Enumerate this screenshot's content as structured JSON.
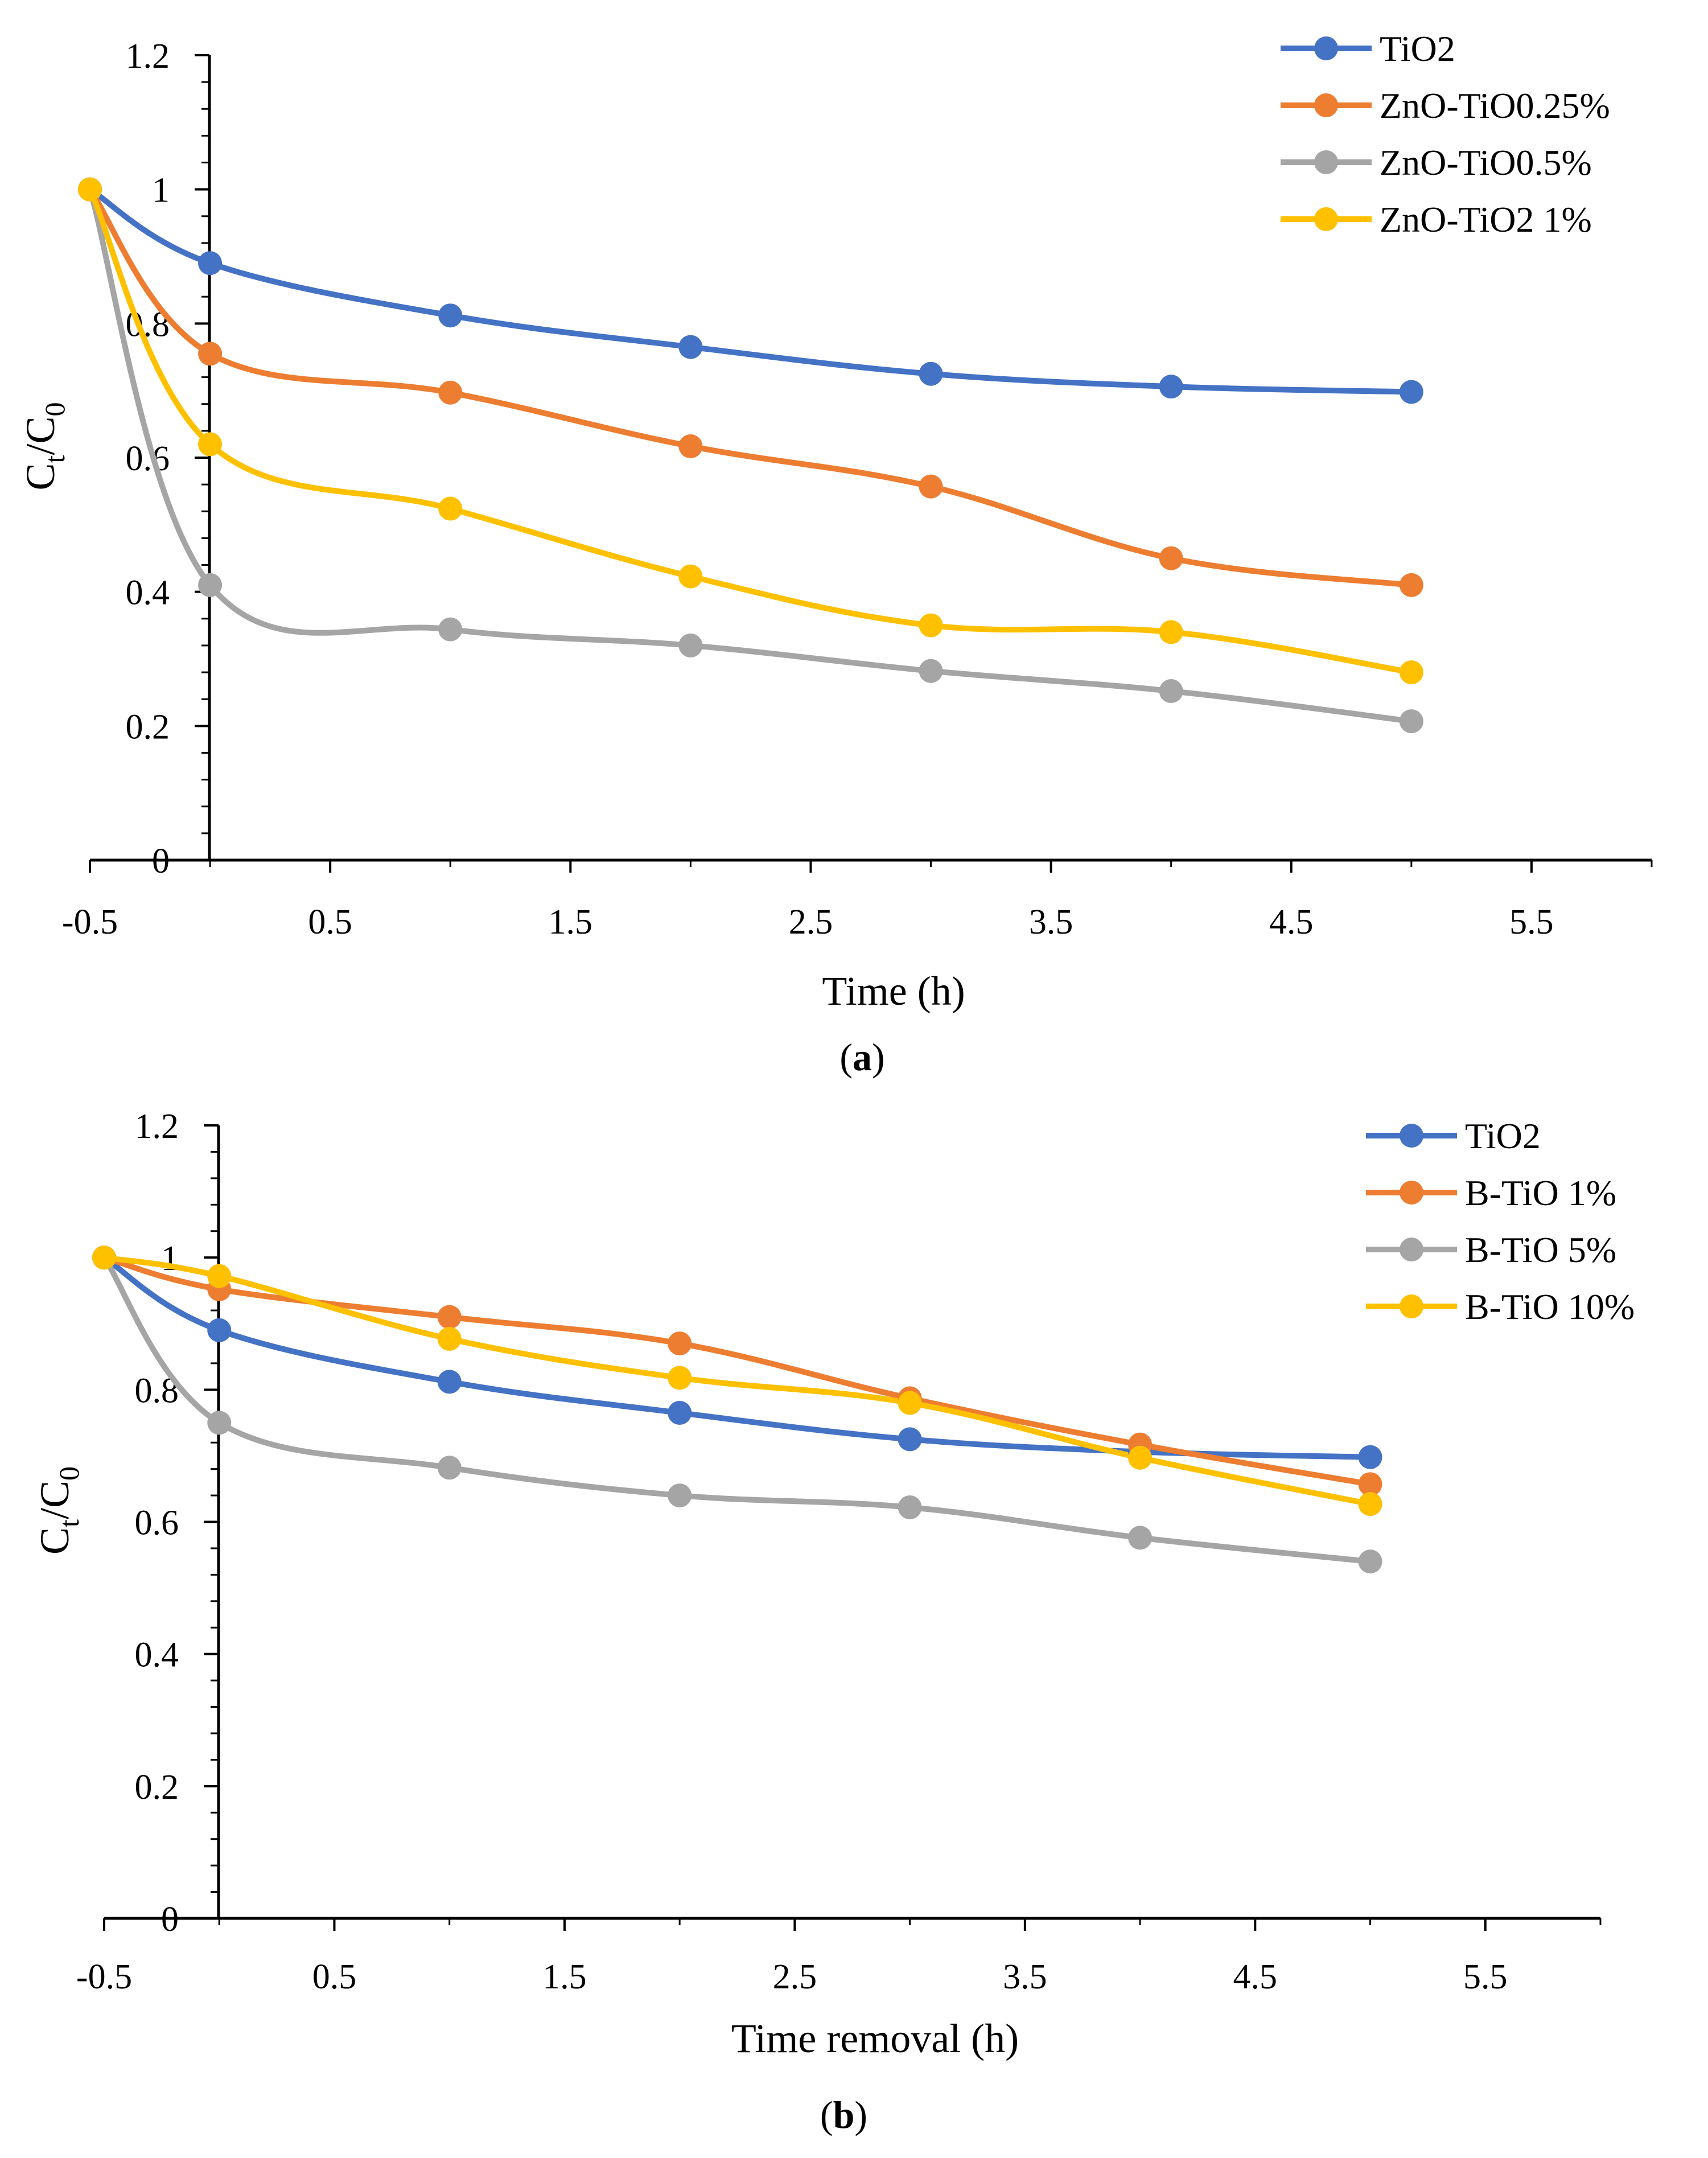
{
  "chart_data": [
    {
      "id": "a",
      "type": "line",
      "caption_letter": "a",
      "xlabel": "Time (h)",
      "ylabel_main": "C",
      "ylabel_sub1": "t",
      "ylabel_mid": "/C",
      "ylabel_sub2": "0",
      "xlim": [
        -0.5,
        6.0
      ],
      "ylim": [
        0,
        1.2
      ],
      "x_ticks": [
        "-0.5",
        "0.5",
        "1.5",
        "2.5",
        "3.5",
        "4.5",
        "5.5"
      ],
      "x_tick_values": [
        -0.5,
        0.5,
        1.5,
        2.5,
        3.5,
        4.5,
        5.5
      ],
      "y_ticks": [
        "0",
        "0.2",
        "0.4",
        "0.6",
        "0.8",
        "1",
        "1.2"
      ],
      "y_tick_values": [
        0,
        0.2,
        0.4,
        0.6,
        0.8,
        1.0,
        1.2
      ],
      "legend_position": "top-right",
      "x": [
        -0.5,
        0,
        1,
        2,
        3,
        4,
        5
      ],
      "series": [
        {
          "name": "TiO2",
          "color": "#4472C4",
          "values": [
            1.0,
            0.89,
            0.812,
            0.765,
            0.725,
            0.706,
            0.698
          ]
        },
        {
          "name": "ZnO-TiO0.25%",
          "color": "#ED7D31",
          "values": [
            1.0,
            0.755,
            0.697,
            0.617,
            0.557,
            0.45,
            0.41
          ]
        },
        {
          "name": "ZnO-TiO0.5%",
          "color": "#A5A5A5",
          "values": [
            1.0,
            0.41,
            0.344,
            0.32,
            0.282,
            0.252,
            0.207
          ]
        },
        {
          "name": "ZnO-TiO2 1%",
          "color": "#FFC000",
          "values": [
            1.0,
            0.62,
            0.524,
            0.423,
            0.35,
            0.34,
            0.28
          ]
        }
      ]
    },
    {
      "id": "b",
      "type": "line",
      "caption_letter": "b",
      "xlabel": "Time removal (h)",
      "ylabel_main": "C",
      "ylabel_sub1": "t",
      "ylabel_mid": "/C",
      "ylabel_sub2": "0",
      "xlim": [
        -0.5,
        6.0
      ],
      "ylim": [
        0,
        1.2
      ],
      "x_ticks": [
        "-0.5",
        "0.5",
        "1.5",
        "2.5",
        "3.5",
        "4.5",
        "5.5"
      ],
      "x_tick_values": [
        -0.5,
        0.5,
        1.5,
        2.5,
        3.5,
        4.5,
        5.5
      ],
      "y_ticks": [
        "0",
        "0.2",
        "0.4",
        "0.6",
        "0.8",
        "1",
        "1.2"
      ],
      "y_tick_values": [
        0,
        0.2,
        0.4,
        0.6,
        0.8,
        1.0,
        1.2
      ],
      "legend_position": "top-right",
      "x": [
        -0.5,
        0,
        1,
        2,
        3,
        4,
        5
      ],
      "series": [
        {
          "name": "TiO2",
          "color": "#4472C4",
          "values": [
            1.0,
            0.89,
            0.812,
            0.765,
            0.725,
            0.706,
            0.698
          ]
        },
        {
          "name": "B-TiO 1%",
          "color": "#ED7D31",
          "values": [
            1.0,
            0.952,
            0.91,
            0.87,
            0.787,
            0.717,
            0.657
          ]
        },
        {
          "name": "B-TiO 5%",
          "color": "#A5A5A5",
          "values": [
            1.0,
            0.75,
            0.682,
            0.64,
            0.622,
            0.576,
            0.54
          ]
        },
        {
          "name": "B-TiO 10%",
          "color": "#FFC000",
          "values": [
            1.0,
            0.972,
            0.877,
            0.818,
            0.78,
            0.697,
            0.627
          ]
        }
      ]
    }
  ]
}
